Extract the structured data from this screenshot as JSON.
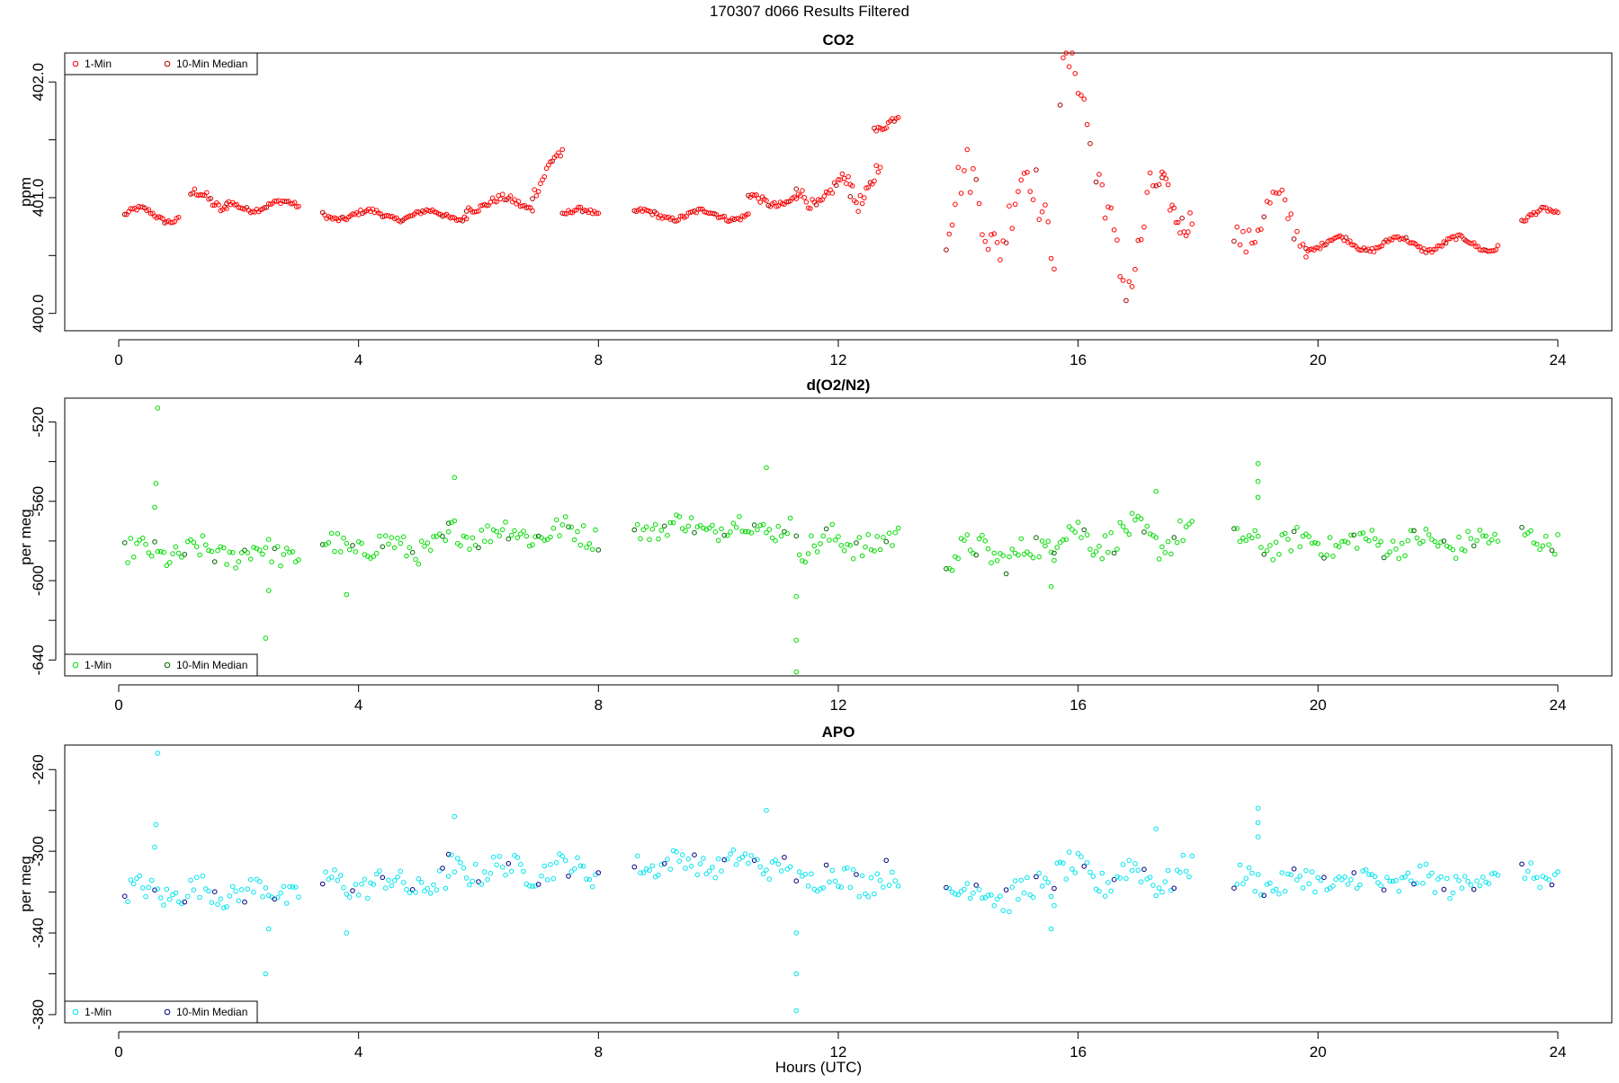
{
  "header": {
    "title": "170307   d066   Results Filtered"
  },
  "xlabel": "Hours (UTC)",
  "chart_data": [
    {
      "type": "scatter",
      "title": "CO2",
      "xlabel": "",
      "ylabel": "ppm",
      "xlim": [
        -0.9,
        24.9
      ],
      "ylim": [
        399.85,
        402.25
      ],
      "xticks": [
        0,
        4,
        8,
        12,
        16,
        20,
        24
      ],
      "yticks": [
        400.0,
        401.0,
        402.0
      ],
      "ytick_labels": [
        "400.0",
        "401.0",
        "402.0"
      ],
      "ytick_minor": [
        400.5,
        401.5
      ],
      "legend": {
        "placement": "top-left",
        "entries": [
          "1-Min",
          "10-Min Median"
        ]
      },
      "colors": {
        "one_min": "#ff0000",
        "median": "#aa0000"
      },
      "series": [
        {
          "name": "1-Min",
          "segments": [
            {
              "t0": 0.1,
              "t1": 1.0,
              "base": 400.85,
              "amp": 0.06,
              "noise": 0.02,
              "spike": 0
            },
            {
              "t0": 1.2,
              "t1": 1.8,
              "base": 400.97,
              "amp": 0.08,
              "noise": 0.04,
              "spike": 0
            },
            {
              "t0": 1.8,
              "t1": 3.0,
              "base": 400.93,
              "amp": 0.04,
              "noise": 0.02,
              "spike": 0
            },
            {
              "t0": 3.4,
              "t1": 5.8,
              "base": 400.85,
              "amp": 0.04,
              "noise": 0.02,
              "spike": 0
            },
            {
              "t0": 5.8,
              "t1": 6.9,
              "base": 400.95,
              "amp": 0.05,
              "noise": 0.03,
              "spike": 0
            },
            {
              "t0": 6.9,
              "t1": 7.4,
              "base": 401.2,
              "amp": 0.18,
              "noise": 0.05,
              "spike": 0
            },
            {
              "t0": 7.4,
              "t1": 8.0,
              "base": 400.86,
              "amp": 0.04,
              "noise": 0.02,
              "spike": 0
            },
            {
              "t0": 8.6,
              "t1": 10.5,
              "base": 400.85,
              "amp": 0.04,
              "noise": 0.02,
              "spike": 0
            },
            {
              "t0": 10.5,
              "t1": 11.3,
              "base": 400.98,
              "amp": 0.05,
              "noise": 0.03,
              "spike": 0
            },
            {
              "t0": 11.3,
              "t1": 12.2,
              "base": 401.05,
              "amp": 0.12,
              "noise": 0.05,
              "spike": 0
            },
            {
              "t0": 12.2,
              "t1": 12.7,
              "base": 401.2,
              "amp": 0.25,
              "noise": 0.08,
              "spike": 0
            },
            {
              "t0": 12.6,
              "t1": 13.0,
              "base": 401.65,
              "amp": 0.07,
              "noise": 0.03,
              "spike": 0
            },
            {
              "t0": 13.8,
              "t1": 15.6,
              "base": 400.9,
              "amp": 0.35,
              "noise": 0.2,
              "spike": 0
            },
            {
              "t0": 15.7,
              "t1": 16.2,
              "base": 401.7,
              "amp": 0.5,
              "noise": 0.2,
              "spike": 0
            },
            {
              "t0": 16.3,
              "t1": 17.4,
              "base": 400.7,
              "amp": 0.45,
              "noise": 0.2,
              "spike": 0
            },
            {
              "t0": 17.4,
              "t1": 17.9,
              "base": 401.0,
              "amp": 0.25,
              "noise": 0.1,
              "spike": 0
            },
            {
              "t0": 18.6,
              "t1": 19.8,
              "base": 400.8,
              "amp": 0.2,
              "noise": 0.12,
              "spike": 0
            },
            {
              "t0": 19.8,
              "t1": 23.0,
              "base": 400.6,
              "amp": 0.06,
              "noise": 0.02,
              "spike": 0
            },
            {
              "t0": 23.4,
              "t1": 24.0,
              "base": 400.84,
              "amp": 0.06,
              "noise": 0.02,
              "spike": 0
            }
          ]
        }
      ]
    },
    {
      "type": "scatter",
      "title": "d(O2/N2)",
      "xlabel": "",
      "ylabel": "per meg",
      "xlim": [
        -0.9,
        24.9
      ],
      "ylim": [
        -648,
        -508
      ],
      "xticks": [
        0,
        4,
        8,
        12,
        16,
        20,
        24
      ],
      "yticks": [
        -640,
        -600,
        -560,
        -520
      ],
      "ytick_labels": [
        "-640",
        "-600",
        "-560",
        "-520"
      ],
      "ytick_minor": [
        -620,
        -580,
        -540
      ],
      "legend": {
        "placement": "bottom-left",
        "entries": [
          "1-Min",
          "10-Min Median"
        ]
      },
      "colors": {
        "one_min": "#00dd00",
        "median": "#006600"
      },
      "series": [
        {
          "name": "1-Min",
          "segments": [
            {
              "t0": 0.1,
              "t1": 3.0,
              "base": -586,
              "amp": 3,
              "noise": 6,
              "spike": 0
            },
            {
              "t0": 3.4,
              "t1": 5.5,
              "base": -583,
              "amp": 3,
              "noise": 6,
              "spike": 0
            },
            {
              "t0": 5.5,
              "t1": 8.0,
              "base": -576,
              "amp": 3,
              "noise": 6,
              "spike": 0
            },
            {
              "t0": 8.6,
              "t1": 11.2,
              "base": -573,
              "amp": 3,
              "noise": 5,
              "spike": 0
            },
            {
              "t0": 11.3,
              "t1": 13.0,
              "base": -581,
              "amp": 3,
              "noise": 7,
              "spike": 0
            },
            {
              "t0": 13.8,
              "t1": 15.6,
              "base": -586,
              "amp": 4,
              "noise": 7,
              "spike": 0
            },
            {
              "t0": 15.6,
              "t1": 17.9,
              "base": -578,
              "amp": 5,
              "noise": 7,
              "spike": 0
            },
            {
              "t0": 18.6,
              "t1": 23.0,
              "base": -581,
              "amp": 3,
              "noise": 6,
              "spike": 0
            },
            {
              "t0": 23.4,
              "t1": 24.0,
              "base": -579,
              "amp": 3,
              "noise": 5,
              "spike": 0
            }
          ],
          "outliers": [
            [
              0.65,
              -513
            ],
            [
              0.62,
              -551
            ],
            [
              0.6,
              -563
            ],
            [
              3.8,
              -607
            ],
            [
              2.5,
              -605
            ],
            [
              2.45,
              -629
            ],
            [
              5.6,
              -548
            ],
            [
              10.8,
              -543
            ],
            [
              11.3,
              -608
            ],
            [
              11.3,
              -630
            ],
            [
              11.3,
              -646
            ],
            [
              15.55,
              -603
            ],
            [
              17.3,
              -555
            ],
            [
              19.0,
              -541
            ],
            [
              19.0,
              -550
            ],
            [
              19.0,
              -558
            ]
          ]
        }
      ]
    },
    {
      "type": "scatter",
      "title": "APO",
      "xlabel": "Hours (UTC)",
      "ylabel": "per meg",
      "xlim": [
        -0.9,
        24.9
      ],
      "ylim": [
        -384,
        -248
      ],
      "xticks": [
        0,
        4,
        8,
        12,
        16,
        20,
        24
      ],
      "yticks": [
        -380,
        -340,
        -300,
        -260
      ],
      "ytick_labels": [
        "-380",
        "-340",
        "-300",
        "-260"
      ],
      "ytick_minor": [
        -360,
        -320,
        -280
      ],
      "legend": {
        "placement": "bottom-left",
        "entries": [
          "1-Min",
          "10-Min Median"
        ]
      },
      "colors": {
        "one_min": "#00e5ee",
        "median": "#000080"
      },
      "series": [
        {
          "name": "1-Min",
          "segments": [
            {
              "t0": 0.1,
              "t1": 3.0,
              "base": -320,
              "amp": 3,
              "noise": 6,
              "spike": 0
            },
            {
              "t0": 3.4,
              "t1": 5.5,
              "base": -316,
              "amp": 3,
              "noise": 6,
              "spike": 0
            },
            {
              "t0": 5.5,
              "t1": 8.0,
              "base": -309,
              "amp": 3,
              "noise": 6,
              "spike": 0
            },
            {
              "t0": 8.6,
              "t1": 11.2,
              "base": -306,
              "amp": 3,
              "noise": 5,
              "spike": 0
            },
            {
              "t0": 11.3,
              "t1": 13.0,
              "base": -313,
              "amp": 3,
              "noise": 7,
              "spike": 0
            },
            {
              "t0": 13.8,
              "t1": 15.6,
              "base": -320,
              "amp": 4,
              "noise": 7,
              "spike": 0
            },
            {
              "t0": 15.6,
              "t1": 17.9,
              "base": -312,
              "amp": 5,
              "noise": 7,
              "spike": 0
            },
            {
              "t0": 18.6,
              "t1": 23.0,
              "base": -315,
              "amp": 3,
              "noise": 6,
              "spike": 0
            },
            {
              "t0": 23.4,
              "t1": 24.0,
              "base": -312,
              "amp": 3,
              "noise": 5,
              "spike": 0
            }
          ],
          "outliers": [
            [
              0.65,
              -252
            ],
            [
              0.62,
              -287
            ],
            [
              0.6,
              -298
            ],
            [
              3.8,
              -340
            ],
            [
              2.5,
              -338
            ],
            [
              2.45,
              -360
            ],
            [
              5.6,
              -283
            ],
            [
              10.8,
              -280
            ],
            [
              11.3,
              -340
            ],
            [
              11.3,
              -360
            ],
            [
              11.3,
              -378
            ],
            [
              15.55,
              -338
            ],
            [
              17.3,
              -289
            ],
            [
              19.0,
              -279
            ],
            [
              19.0,
              -286
            ],
            [
              19.0,
              -293
            ]
          ]
        }
      ]
    }
  ]
}
